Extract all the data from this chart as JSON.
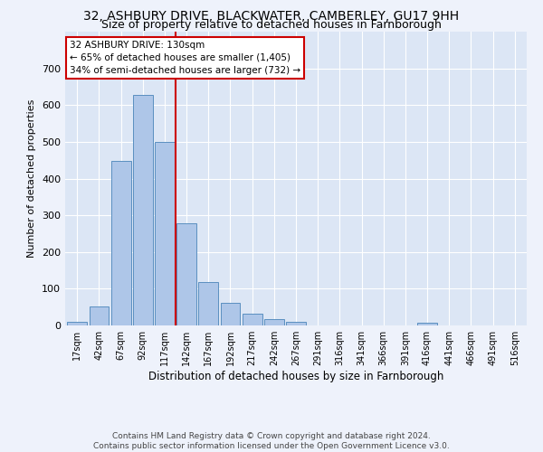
{
  "title_line1": "32, ASHBURY DRIVE, BLACKWATER, CAMBERLEY, GU17 9HH",
  "title_line2": "Size of property relative to detached houses in Farnborough",
  "xlabel": "Distribution of detached houses by size in Farnborough",
  "ylabel": "Number of detached properties",
  "footer_line1": "Contains HM Land Registry data © Crown copyright and database right 2024.",
  "footer_line2": "Contains public sector information licensed under the Open Government Licence v3.0.",
  "bar_labels": [
    "17sqm",
    "42sqm",
    "67sqm",
    "92sqm",
    "117sqm",
    "142sqm",
    "167sqm",
    "192sqm",
    "217sqm",
    "242sqm",
    "267sqm",
    "291sqm",
    "316sqm",
    "341sqm",
    "366sqm",
    "391sqm",
    "416sqm",
    "441sqm",
    "466sqm",
    "491sqm",
    "516sqm"
  ],
  "bar_values": [
    10,
    52,
    447,
    627,
    500,
    278,
    117,
    62,
    33,
    18,
    9,
    0,
    0,
    0,
    0,
    0,
    8,
    0,
    0,
    0,
    0
  ],
  "bar_color": "#aec6e8",
  "bar_edge_color": "#5a8fc0",
  "vline_x": 4.5,
  "vline_color": "#cc0000",
  "annotation_text": "32 ASHBURY DRIVE: 130sqm\n← 65% of detached houses are smaller (1,405)\n34% of semi-detached houses are larger (732) →",
  "annotation_box_color": "#ffffff",
  "annotation_box_edge": "#cc0000",
  "ylim": [
    0,
    800
  ],
  "yticks": [
    0,
    100,
    200,
    300,
    400,
    500,
    600,
    700,
    800
  ],
  "plot_bg_color": "#dce6f5",
  "fig_bg_color": "#eef2fb",
  "grid_color": "#ffffff",
  "title_fontsize": 10,
  "subtitle_fontsize": 9,
  "xlabel_fontsize": 8.5,
  "ylabel_fontsize": 8,
  "tick_fontsize": 7,
  "annot_fontsize": 7.5,
  "footer_fontsize": 6.5
}
